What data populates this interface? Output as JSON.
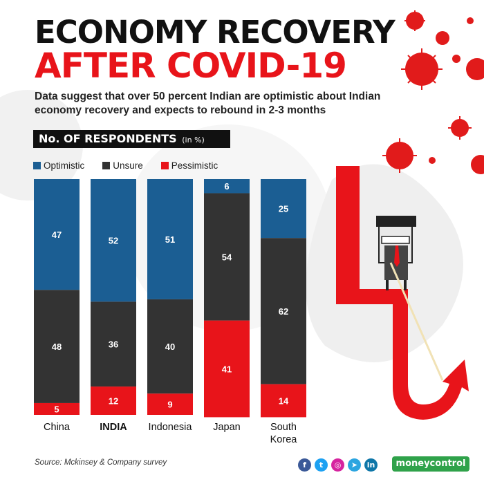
{
  "title_line1": "ECONOMY RECOVERY",
  "title_line2": "AFTER COVID-19",
  "subtitle": "Data suggest that over 50 percent Indian are optimistic about Indian economy recovery and expects to rebound in 2-3 months",
  "respondents_label": "No. OF RESPONDENTS",
  "respondents_unit": "(in %)",
  "legend": [
    {
      "label": "Optimistic",
      "color": "#1b5e93"
    },
    {
      "label": "Unsure",
      "color": "#333333"
    },
    {
      "label": "Pessimistic",
      "color": "#e8141a"
    }
  ],
  "chart_data": {
    "type": "bar",
    "stacked": true,
    "orientation": "vertical",
    "categories": [
      "China",
      "INDIA",
      "Indonesia",
      "Japan",
      "South Korea"
    ],
    "highlight_category": "INDIA",
    "series": [
      {
        "name": "Optimistic",
        "color": "#1b5e93",
        "values": [
          47,
          52,
          51,
          6,
          25
        ]
      },
      {
        "name": "Unsure",
        "color": "#333333",
        "values": [
          48,
          36,
          40,
          54,
          62
        ]
      },
      {
        "name": "Pessimistic",
        "color": "#e8141a",
        "values": [
          5,
          12,
          9,
          41,
          14
        ]
      }
    ],
    "title": "No. OF RESPONDENTS (in %)",
    "ylim": [
      0,
      100
    ],
    "legend_position": "top-left"
  },
  "source": "Source: Mckinsey & Company survey",
  "social_icons": [
    {
      "icon": "facebook-icon",
      "glyph": "f",
      "color": "#3b5998"
    },
    {
      "icon": "twitter-icon",
      "glyph": "t",
      "color": "#1da1f2"
    },
    {
      "icon": "instagram-icon",
      "glyph": "◎",
      "color": "#d6249f"
    },
    {
      "icon": "telegram-icon",
      "glyph": "➤",
      "color": "#2ca5e0"
    },
    {
      "icon": "linkedin-icon",
      "glyph": "in",
      "color": "#0e76a8"
    }
  ],
  "brand": "moneycontrol"
}
